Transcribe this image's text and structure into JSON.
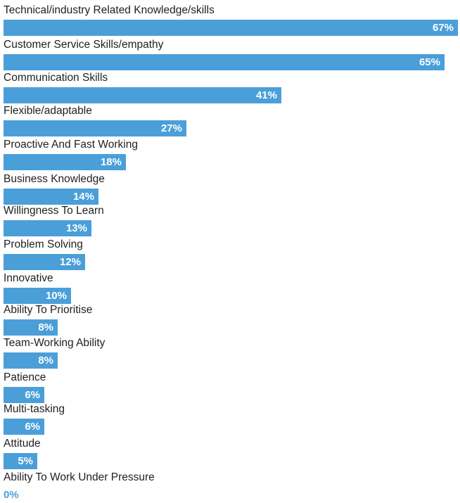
{
  "chart_data": {
    "type": "bar",
    "orientation": "horizontal",
    "title": "",
    "xlabel": "",
    "ylabel": "",
    "xlim": [
      0,
      67
    ],
    "grid": false,
    "legend": "none",
    "bar_color": "#4a9fd9",
    "value_label_color": "#ffffff",
    "categories": [
      "Technical/industry Related Knowledge/skills",
      "Customer Service Skills/empathy",
      "Communication Skills",
      "Flexible/adaptable",
      "Proactive And Fast Working",
      "Business Knowledge",
      "Willingness To Learn",
      "Problem Solving",
      "Innovative",
      "Ability To Prioritise",
      "Team-Working Ability",
      "Patience",
      "Multi-tasking",
      "Attitude",
      "Ability To Work Under Pressure"
    ],
    "values": [
      67,
      65,
      41,
      27,
      18,
      14,
      13,
      12,
      10,
      8,
      8,
      6,
      6,
      5,
      0
    ],
    "value_labels": [
      "67%",
      "65%",
      "41%",
      "27%",
      "18%",
      "14%",
      "13%",
      "12%",
      "10%",
      "8%",
      "8%",
      "6%",
      "6%",
      "5%",
      "0%"
    ]
  }
}
